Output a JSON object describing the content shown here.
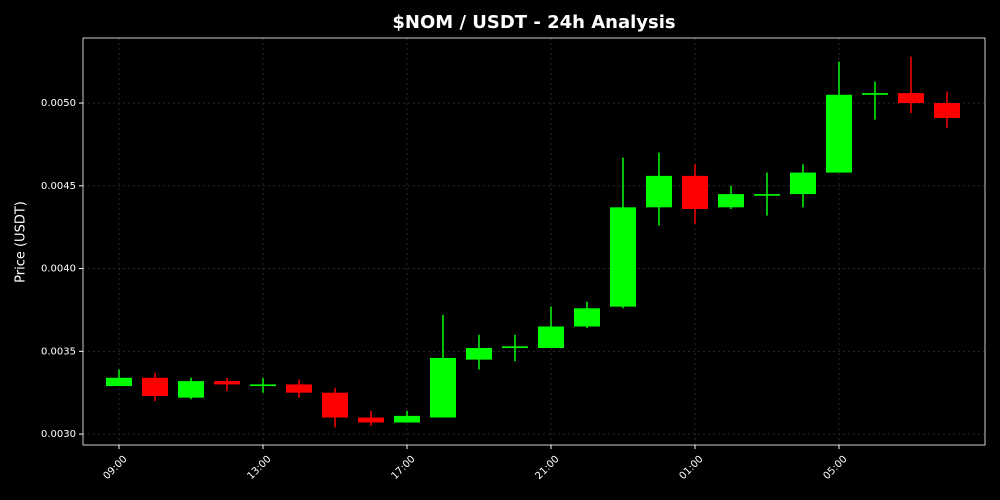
{
  "chart_data": {
    "type": "candlestick",
    "title": "$NOM / USDT - 24h Analysis",
    "y_label": "Price (USDT)",
    "categories": [
      "09:00",
      null,
      null,
      null,
      "13:00",
      null,
      null,
      null,
      "17:00",
      null,
      null,
      null,
      "21:00",
      null,
      null,
      null,
      "01:00",
      null,
      null,
      null,
      "05:00",
      null,
      null,
      null
    ],
    "open": [
      0.00329,
      0.00334,
      0.00322,
      0.00332,
      0.00329,
      0.0033,
      0.00325,
      0.0031,
      0.00307,
      0.0031,
      0.00345,
      0.00352,
      0.00352,
      0.00365,
      0.00377,
      0.00437,
      0.00456,
      0.00437,
      0.00444,
      0.00445,
      0.00458,
      0.00505,
      0.00506,
      0.005
    ],
    "high": [
      0.00339,
      0.00337,
      0.00334,
      0.00334,
      0.00334,
      0.00333,
      0.00328,
      0.00314,
      0.00314,
      0.00372,
      0.0036,
      0.0036,
      0.00377,
      0.0038,
      0.00467,
      0.0047,
      0.00463,
      0.0045,
      0.00458,
      0.00463,
      0.00525,
      0.00513,
      0.00528,
      0.00507
    ],
    "low": [
      0.00329,
      0.0032,
      0.00321,
      0.00326,
      0.00325,
      0.00322,
      0.00304,
      0.00305,
      0.00307,
      0.0031,
      0.00339,
      0.00344,
      0.00352,
      0.00364,
      0.00376,
      0.00426,
      0.00427,
      0.00436,
      0.00432,
      0.00437,
      0.00458,
      0.0049,
      0.00494,
      0.00485
    ],
    "close": [
      0.00334,
      0.00323,
      0.00332,
      0.0033,
      0.0033,
      0.00325,
      0.0031,
      0.00307,
      0.00311,
      0.00346,
      0.00352,
      0.00353,
      0.00365,
      0.00376,
      0.00437,
      0.00456,
      0.00436,
      0.00445,
      0.00445,
      0.00458,
      0.00505,
      0.00506,
      0.005,
      0.00491
    ],
    "up_color": "#00ff00",
    "down_color": "#ff0000",
    "ylim": [
      0.002934,
      0.005393
    ],
    "yticks": [
      {
        "value": 0.003,
        "label": "0.0030"
      },
      {
        "value": 0.0035,
        "label": "0.0035"
      },
      {
        "value": 0.004,
        "label": "0.0040"
      },
      {
        "value": 0.0045,
        "label": "0.0045"
      },
      {
        "value": 0.005,
        "label": "0.0050"
      }
    ],
    "grid": true
  }
}
